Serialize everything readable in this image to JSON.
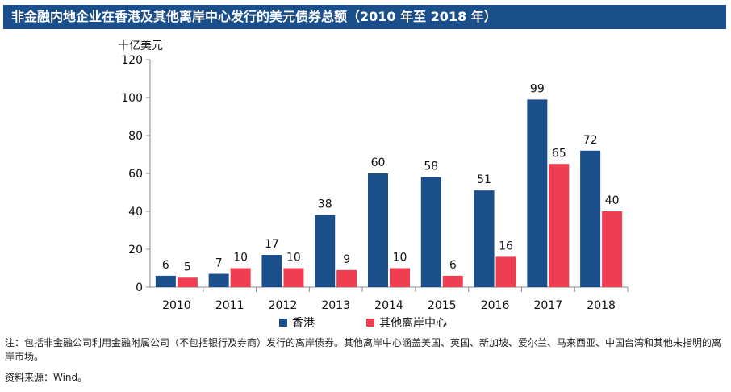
{
  "title": "非金融内地企业在香港及其他离岸中心发行的美元债券总额（2010 年至 2018 年）",
  "chart_data": {
    "type": "bar",
    "ylabel": "十亿美元",
    "ylim": [
      0,
      120
    ],
    "yticks": [
      0,
      20,
      40,
      60,
      80,
      100,
      120
    ],
    "categories": [
      "2010",
      "2011",
      "2012",
      "2013",
      "2014",
      "2015",
      "2016",
      "2017",
      "2018"
    ],
    "series": [
      {
        "name": "香港",
        "color": "#1b4f8c",
        "values": [
          6,
          7,
          17,
          38,
          60,
          58,
          51,
          99,
          72
        ]
      },
      {
        "name": "其他离岸中心",
        "color": "#ef3e52",
        "values": [
          5,
          10,
          10,
          9,
          10,
          6,
          16,
          65,
          40
        ]
      }
    ],
    "legend": "bottom",
    "grid": false
  },
  "note": "注：包括非金融公司利用金融附属公司（不包括银行及券商）发行的离岸债券。其他离岸中心涵盖美国、英国、新加坡、爱尔兰、马来西亚、中国台湾和其他未指明的离岸市场。",
  "source": "资料来源：Wind。"
}
